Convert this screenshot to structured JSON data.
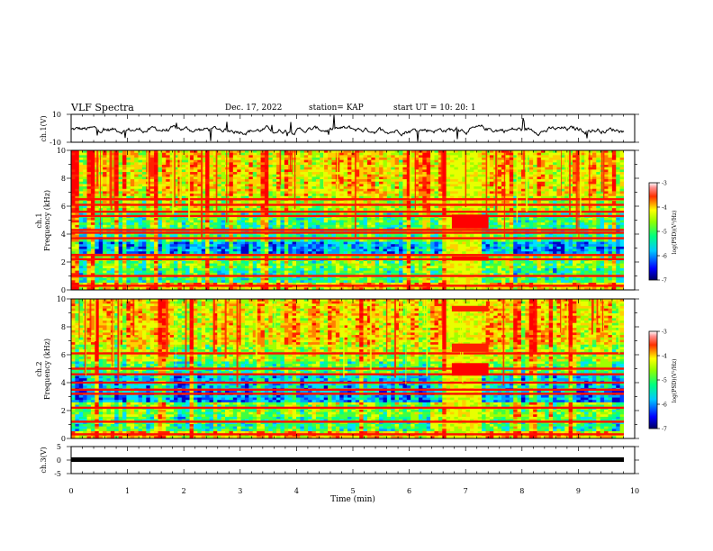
{
  "header": {
    "title": "VLF Spectra",
    "date": "Dec. 17, 2022",
    "station": "station= KAP",
    "start": "start  UT  =   10: 20: 1"
  },
  "chart_data": [
    {
      "type": "line",
      "panel": "ch1-waveform",
      "ylabel": "ch.1(V)",
      "ylim": [
        -10,
        10
      ],
      "yticks": [
        "10",
        "-10"
      ],
      "xlim": [
        0,
        10
      ],
      "series": [
        {
          "values_description_none": true
        }
      ]
    },
    {
      "type": "heatmap",
      "panel": "ch1-spectrogram",
      "ylabel": "ch.1\nFrequency (kHz)",
      "ylabel_lines": [
        "ch.1",
        "Frequency (kHz)"
      ],
      "ylim": [
        0,
        10
      ],
      "yticks": [
        "0",
        "2",
        "4",
        "6",
        "8",
        "10"
      ],
      "xlim": [
        0,
        10
      ],
      "colorbar": {
        "label": "log(PSD)(V²/Hz)",
        "ticks": [
          "-3",
          "-4",
          "-5",
          "-6",
          "-7"
        ],
        "range": [
          -7,
          -3
        ]
      }
    },
    {
      "type": "heatmap",
      "panel": "ch2-spectrogram",
      "ylabel_lines": [
        "ch.2",
        "Frequency (kHz)"
      ],
      "ylim": [
        0,
        10
      ],
      "yticks": [
        "0",
        "2",
        "4",
        "6",
        "8",
        "10"
      ],
      "xlim": [
        0,
        10
      ],
      "colorbar": {
        "label": "log(PSD)(V²/Hz)",
        "ticks": [
          "-3",
          "-4",
          "-5",
          "-6",
          "-7"
        ],
        "range": [
          -7,
          -3
        ]
      }
    },
    {
      "type": "line",
      "panel": "ch3-waveform",
      "ylabel": "ch.3(V)",
      "ylim": [
        -5,
        5
      ],
      "yticks": [
        "5",
        "0",
        "-5"
      ],
      "xlim": [
        0,
        10
      ],
      "xlabel": "Time  (min)",
      "xticks": [
        "0",
        "1",
        "2",
        "3",
        "4",
        "5",
        "6",
        "7",
        "8",
        "9",
        "10"
      ]
    }
  ]
}
